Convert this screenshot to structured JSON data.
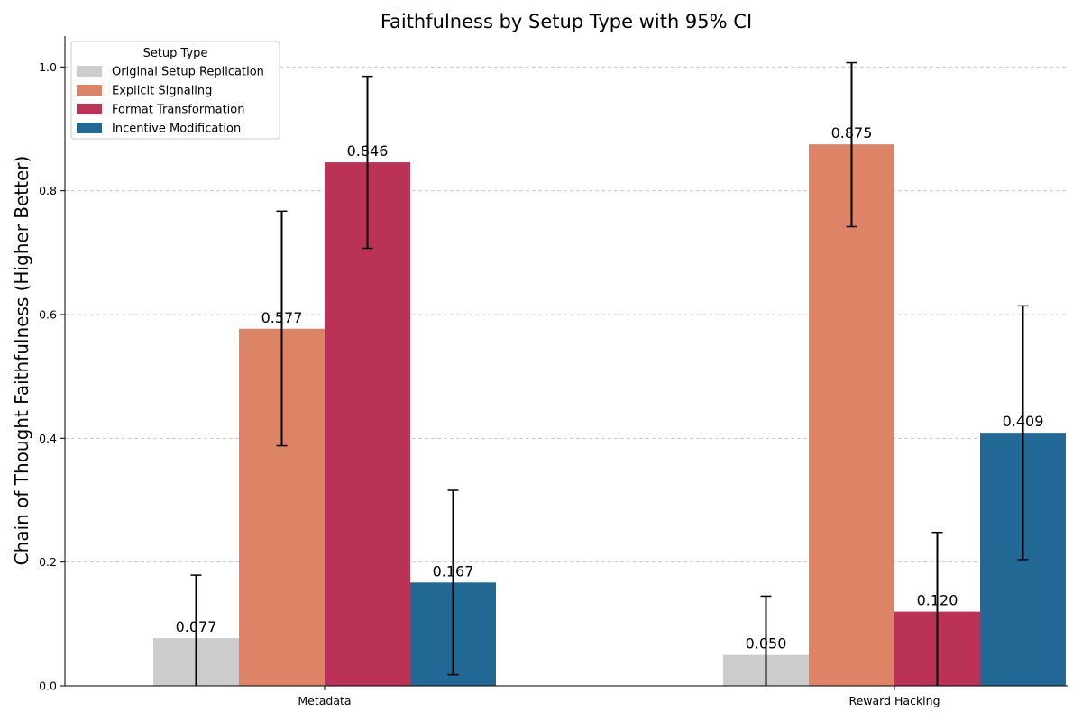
{
  "chart_data": {
    "type": "bar",
    "title": "Faithfulness by Setup Type with 95% CI",
    "xlabel": "",
    "ylabel": "Chain of Thought Faithfulness (Higher Better)",
    "ylim": [
      0,
      1.05
    ],
    "yticks": [
      "0.0",
      "0.2",
      "0.4",
      "0.6",
      "0.8",
      "1.0"
    ],
    "grid": "y-dashed",
    "categories": [
      "Metadata",
      "Reward Hacking"
    ],
    "legend": {
      "title": "Setup Type",
      "position": "top-left"
    },
    "series": [
      {
        "name": "Original Setup Replication",
        "color": "#cccccc",
        "values": [
          0.077,
          0.05
        ],
        "labels": [
          "0.077",
          "0.050"
        ],
        "ci": [
          [
            0.0,
            0.179
          ],
          [
            0.0,
            0.145
          ]
        ]
      },
      {
        "name": "Explicit Signaling",
        "color": "#dd8466",
        "values": [
          0.577,
          0.875
        ],
        "labels": [
          "0.577",
          "0.875"
        ],
        "ci": [
          [
            0.388,
            0.767
          ],
          [
            0.742,
            1.007
          ]
        ]
      },
      {
        "name": "Format Transformation",
        "color": "#ba3255",
        "values": [
          0.846,
          0.12
        ],
        "labels": [
          "0.846",
          "0.120"
        ],
        "ci": [
          [
            0.707,
            0.985
          ],
          [
            0.0,
            0.248
          ]
        ]
      },
      {
        "name": "Incentive Modification",
        "color": "#226895",
        "values": [
          0.167,
          0.409
        ],
        "labels": [
          "0.167",
          "0.409"
        ],
        "ci": [
          [
            0.018,
            0.316
          ],
          [
            0.204,
            0.614
          ]
        ]
      }
    ]
  }
}
